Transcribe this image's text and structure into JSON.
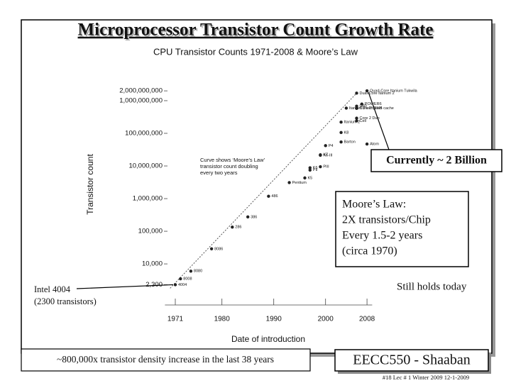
{
  "slide": {
    "title": "Microprocessor Transistor Count Growth Rate",
    "callout_current": "Currently ~ 2 Billion",
    "callout_moore": [
      "Moore’s Law:",
      "2X transistors/Chip",
      "Every 1.5-2 years",
      "(circa 1970)"
    ],
    "callout_holds": "Still holds today",
    "callout_4004": [
      "Intel 4004",
      "(2300 transistors)"
    ],
    "bottom_note": "~800,000x  transistor density increase in the last 38 years",
    "badge": "EECC550 - Shaaban",
    "footer": "#18   Lec # 1  Winter 2009  12-1-2009"
  },
  "chart_data": {
    "type": "scatter",
    "title": "CPU Transistor Counts 1971-2008 & Moore’s Law",
    "x_label": "Date of introduction",
    "y_label": "Transistor count",
    "annotation": [
      "Curve shows ‘Moore’s Law’",
      "transistor count doubling",
      "every two years"
    ],
    "log_y": true,
    "color": "#222222",
    "xlim": [
      1969,
      2009
    ],
    "xticks": [
      1971,
      1980,
      1990,
      2000,
      2008
    ],
    "ylim": [
      1500,
      3000000000
    ],
    "yticks": [
      {
        "value": 2300,
        "label": "2,300"
      },
      {
        "value": 10000,
        "label": "10,000"
      },
      {
        "value": 100000,
        "label": "100,000"
      },
      {
        "value": 1000000,
        "label": "1,000,000"
      },
      {
        "value": 10000000,
        "label": "10,000,000"
      },
      {
        "value": 100000000,
        "label": "100,000,000"
      },
      {
        "value": 1000000000,
        "label": "1,000,000,000"
      },
      {
        "value": 2000000000,
        "label": "2,000,000,000"
      }
    ],
    "point_labels": [
      "4004",
      "8008",
      "8080",
      "8086",
      "286",
      "386",
      "486",
      "Pentium",
      "K5",
      "PII",
      "K6",
      "PIII",
      "K6-III",
      "K7",
      "P4",
      "Barton",
      "Atom",
      "K8",
      "Itanium 2",
      "Itanium 2 with 9MB cache",
      "Cell",
      "Core 2 Duo",
      "Core 2 Quad",
      "G80",
      "POWER6",
      "Dual-Core Itanium 2",
      "Quad-Core Itanium Tukwila"
    ],
    "x": [
      1971,
      1972,
      1974,
      1978,
      1982,
      1985,
      1989,
      1993,
      1996,
      1997,
      1997,
      1999,
      1999,
      1999,
      2000,
      2003,
      2008,
      2003,
      2003,
      2004,
      2006,
      2006,
      2006,
      2006,
      2007,
      2006,
      2008
    ],
    "values": [
      2300,
      3500,
      6000,
      29000,
      134000,
      275000,
      1180000,
      3100000,
      4300000,
      7500000,
      8800000,
      9500000,
      21300000,
      22000000,
      42000000,
      54300000,
      47000000,
      105900000,
      220000000,
      592000000,
      241000000,
      291000000,
      582000000,
      681000000,
      789000000,
      1700000000,
      2000000000
    ],
    "trend": {
      "x": [
        1970,
        2006
      ],
      "values": [
        1800,
        1700000000
      ]
    }
  }
}
